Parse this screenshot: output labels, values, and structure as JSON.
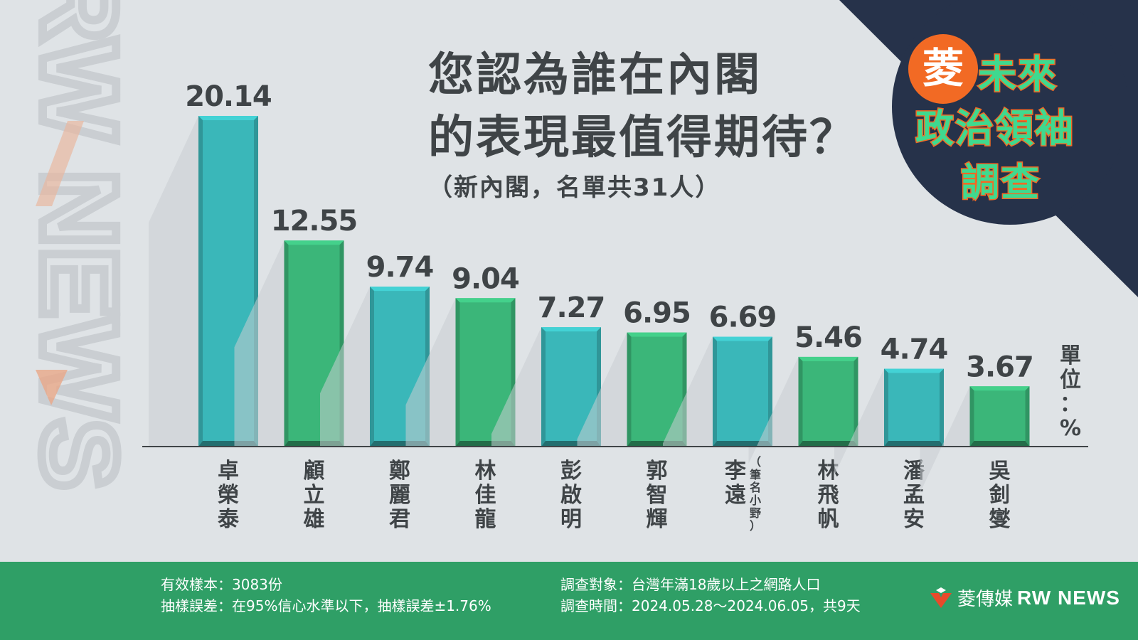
{
  "chart_data": {
    "type": "bar",
    "title": "您認為誰在內閣的表現最值得期待？",
    "title_lines": [
      "您認為誰在內閣",
      "的表現最值得期待？"
    ],
    "subtitle": "（新內閣，名單共31人）",
    "unit_label": "單位：%",
    "categories": [
      "卓榮泰",
      "顧立雄",
      "鄭麗君",
      "林佳龍",
      "彭啟明",
      "郭智輝",
      "李遠",
      "林飛帆",
      "潘孟安",
      "吳釗燮"
    ],
    "category_notes": [
      "",
      "",
      "",
      "",
      "",
      "",
      "（筆名小野）",
      "",
      "",
      ""
    ],
    "values": [
      20.14,
      12.55,
      9.74,
      9.04,
      7.27,
      6.95,
      6.69,
      5.46,
      4.74,
      3.67
    ],
    "value_labels": [
      "20.14",
      "12.55",
      "9.74",
      "9.04",
      "7.27",
      "6.95",
      "6.69",
      "5.46",
      "4.74",
      "3.67"
    ],
    "ylim": [
      0,
      20.14
    ],
    "grid": false,
    "colors": [
      "#3ab7b9",
      "#3bb679"
    ]
  },
  "badge": {
    "ling": "菱",
    "line1": "未來",
    "line2": "政治領袖",
    "line3": "調查"
  },
  "watermark": "RW NEWS",
  "footer": {
    "sample": "有效樣本：3083份",
    "error": "抽樣誤差：在95%信心水準以下，抽樣誤差±1.76%",
    "target": "調查對象：台灣年滿18歲以上之網路人口",
    "period": "調查時間：2024.05.28～2024.06.05，共9天",
    "brand_cn": "菱傳媒",
    "brand_en": "RW NEWS"
  },
  "colors": {
    "background": "#dfe3e6",
    "teal_bar": "#3ab7b9",
    "green_bar": "#3bb679",
    "footer_green": "#2f9f66",
    "navy": "#26324a",
    "orange": "#f26a24",
    "text_dark": "#3f4447"
  }
}
